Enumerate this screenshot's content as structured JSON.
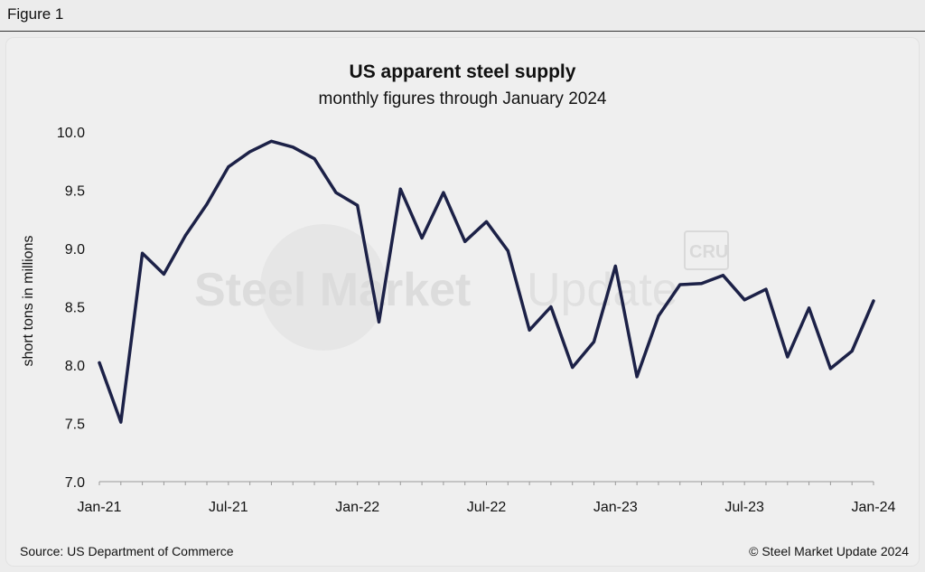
{
  "figure_label": "Figure 1",
  "source": "Source: US Department of Commerce",
  "copyright": "© Steel Market Update 2024",
  "watermark": {
    "text_bold": "Steel Market",
    "text_light": "Update",
    "logo": "CRU"
  },
  "colors": {
    "line": "#1c2147",
    "axis": "#999999",
    "background": "#efefef"
  },
  "chart_data": {
    "type": "line",
    "title": "US apparent steel supply",
    "subtitle": "monthly figures through January 2024",
    "xlabel": "",
    "ylabel": "short tons in millions",
    "ylim": [
      7.0,
      10.0
    ],
    "yticks": [
      "7.0",
      "7.5",
      "8.0",
      "8.5",
      "9.0",
      "9.5",
      "10.0"
    ],
    "xtick_labels": [
      "Jan-21",
      "Jul-21",
      "Jan-22",
      "Jul-22",
      "Jan-23",
      "Jul-23",
      "Jan-24"
    ],
    "grid": false,
    "x": [
      "Jan-21",
      "Feb-21",
      "Mar-21",
      "Apr-21",
      "May-21",
      "Jun-21",
      "Jul-21",
      "Aug-21",
      "Sep-21",
      "Oct-21",
      "Nov-21",
      "Dec-21",
      "Jan-22",
      "Feb-22",
      "Mar-22",
      "Apr-22",
      "May-22",
      "Jun-22",
      "Jul-22",
      "Aug-22",
      "Sep-22",
      "Oct-22",
      "Nov-22",
      "Dec-22",
      "Jan-23",
      "Feb-23",
      "Mar-23",
      "Apr-23",
      "May-23",
      "Jun-23",
      "Jul-23",
      "Aug-23",
      "Sep-23",
      "Oct-23",
      "Nov-23",
      "Dec-23",
      "Jan-24"
    ],
    "series": [
      {
        "values": [
          8.02,
          7.51,
          8.96,
          8.78,
          9.11,
          9.38,
          9.7,
          9.83,
          9.92,
          9.87,
          9.77,
          9.48,
          9.37,
          8.37,
          9.51,
          9.09,
          9.48,
          9.06,
          9.23,
          8.98,
          8.3,
          8.5,
          7.98,
          8.2,
          8.85,
          7.9,
          8.42,
          8.69,
          8.7,
          8.77,
          8.56,
          8.65,
          8.07,
          8.49,
          7.97,
          8.12,
          8.55
        ]
      }
    ]
  }
}
